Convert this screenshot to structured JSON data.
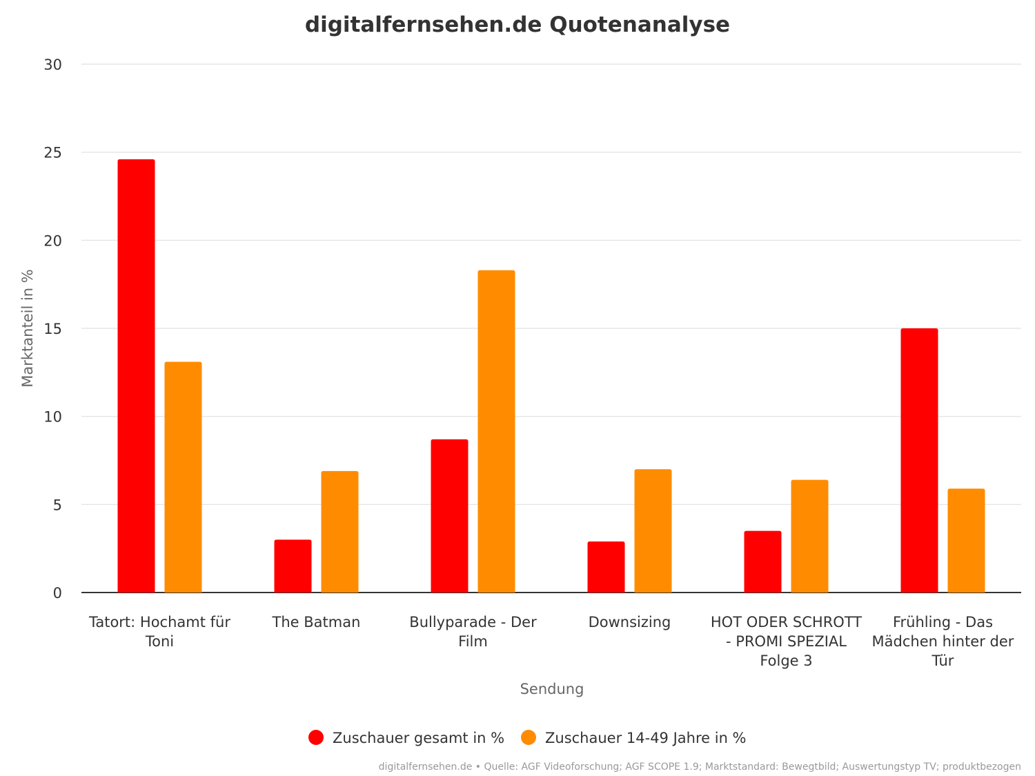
{
  "chart_data": {
    "type": "bar",
    "title": "digitalfernsehen.de Quotenanalyse",
    "xlabel": "Sendung",
    "ylabel": "Marktanteil in %",
    "ylim": [
      0,
      30
    ],
    "yticks": [
      0,
      5,
      10,
      15,
      20,
      25,
      30
    ],
    "grid": true,
    "legend_position": "bottom",
    "categories": [
      [
        "Tatort: Hochamt für",
        "Toni"
      ],
      [
        "The Batman"
      ],
      [
        "Bullyparade - Der",
        "Film"
      ],
      [
        "Downsizing"
      ],
      [
        "HOT ODER SCHROTT",
        "- PROMI SPEZIAL",
        "Folge 3"
      ],
      [
        "Frühling - Das",
        "Mädchen hinter der",
        "Tür"
      ]
    ],
    "series": [
      {
        "name": "Zuschauer gesamt in %",
        "color": "#ff0000",
        "values": [
          24.6,
          3.0,
          8.7,
          2.9,
          3.5,
          15.0
        ]
      },
      {
        "name": "Zuschauer 14-49 Jahre in %",
        "color": "#ff8c00",
        "values": [
          13.1,
          6.9,
          18.3,
          7.0,
          6.4,
          5.9
        ]
      }
    ],
    "source": "digitalfernsehen.de • Quelle: AGF Videoforschung; AGF SCOPE 1.9; Marktstandard: Bewegtbild; Auswertungstyp TV; produktbezogen"
  }
}
